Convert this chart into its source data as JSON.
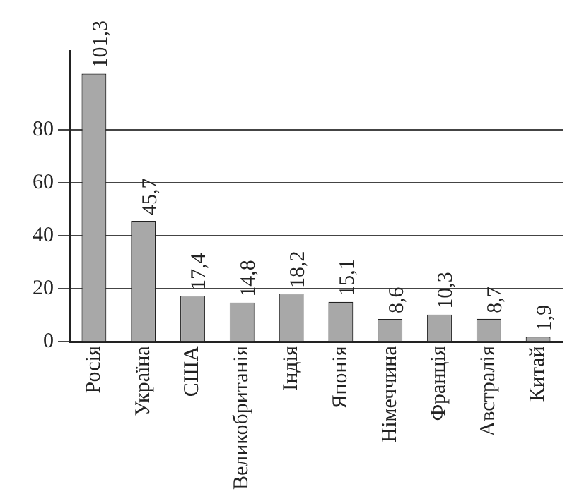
{
  "chart_data": {
    "type": "bar",
    "categories": [
      "Росія",
      "Україна",
      "США",
      "Великобританія",
      "Індія",
      "Японія",
      "Німеччина",
      "Франція",
      "Австралія",
      "Китай"
    ],
    "values": [
      101.3,
      45.7,
      17.4,
      14.8,
      18.2,
      15.1,
      8.6,
      10.3,
      8.7,
      1.9
    ],
    "value_labels": [
      "101,3",
      "45,7",
      "17,4",
      "14,8",
      "18,2",
      "15,1",
      "8,6",
      "10,3",
      "8,7",
      "1,9"
    ],
    "color": "#a8a8a8",
    "ylim": [
      0,
      110
    ],
    "yticks": [
      0,
      20,
      40,
      60,
      80
    ],
    "grid": "y"
  }
}
